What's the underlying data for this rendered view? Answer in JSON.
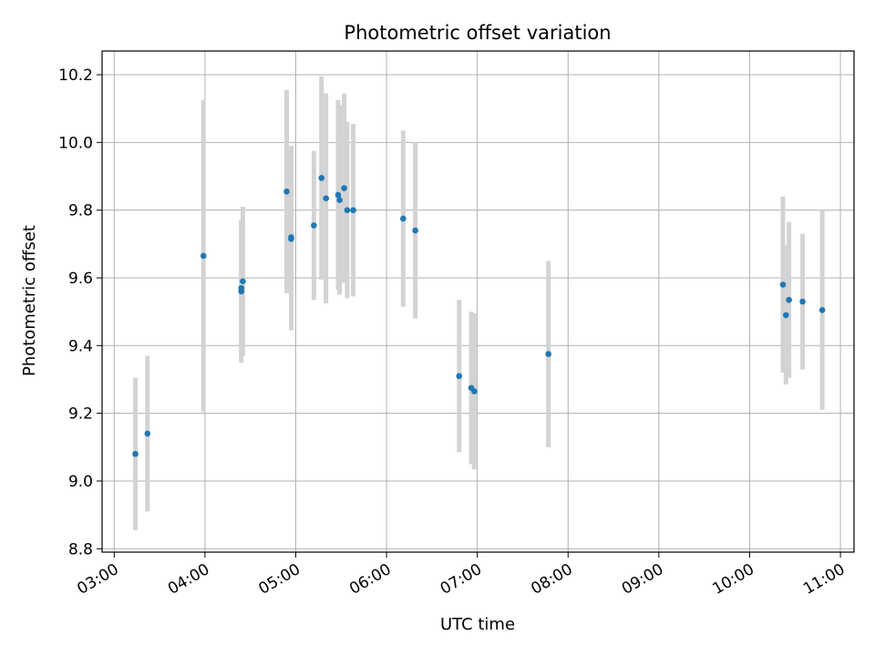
{
  "chart_data": {
    "type": "scatter",
    "title": "Photometric offset variation",
    "xlabel": "UTC time",
    "ylabel": "Photometric offset",
    "x_axis_type": "time",
    "xlim": [
      "02:52",
      "11:09"
    ],
    "ylim": [
      8.79,
      10.27
    ],
    "x_ticks": [
      "03:00",
      "04:00",
      "05:00",
      "06:00",
      "07:00",
      "08:00",
      "09:00",
      "10:00",
      "11:00"
    ],
    "y_ticks": [
      8.8,
      9.0,
      9.2,
      9.4,
      9.6,
      9.8,
      10.0,
      10.2
    ],
    "y_tick_labels": [
      "8.8",
      "9.0",
      "9.2",
      "9.4",
      "9.6",
      "9.8",
      "10.0",
      "10.2"
    ],
    "grid": true,
    "marker_color": "#1f77b4",
    "errorbar_color": "#d3d3d3",
    "points": [
      {
        "x": "03:14",
        "y": 9.08,
        "err": 0.225
      },
      {
        "x": "03:22",
        "y": 9.14,
        "err": 0.23
      },
      {
        "x": "03:59",
        "y": 9.665,
        "err": 0.46
      },
      {
        "x": "04:24",
        "y": 9.56,
        "err": 0.21
      },
      {
        "x": "04:24",
        "y": 9.57,
        "err": 0.2
      },
      {
        "x": "04:25",
        "y": 9.59,
        "err": 0.22
      },
      {
        "x": "04:54",
        "y": 9.855,
        "err": 0.3
      },
      {
        "x": "04:57",
        "y": 9.715,
        "err": 0.27
      },
      {
        "x": "04:57",
        "y": 9.72,
        "err": 0.27
      },
      {
        "x": "05:12",
        "y": 9.755,
        "err": 0.22
      },
      {
        "x": "05:17",
        "y": 9.895,
        "err": 0.3
      },
      {
        "x": "05:20",
        "y": 9.835,
        "err": 0.31
      },
      {
        "x": "05:28",
        "y": 9.845,
        "err": 0.28
      },
      {
        "x": "05:29",
        "y": 9.83,
        "err": 0.28
      },
      {
        "x": "05:32",
        "y": 9.865,
        "err": 0.28
      },
      {
        "x": "05:34",
        "y": 9.8,
        "err": 0.26
      },
      {
        "x": "05:38",
        "y": 9.8,
        "err": 0.255
      },
      {
        "x": "06:11",
        "y": 9.775,
        "err": 0.26
      },
      {
        "x": "06:19",
        "y": 9.74,
        "err": 0.26
      },
      {
        "x": "06:48",
        "y": 9.31,
        "err": 0.225
      },
      {
        "x": "06:56",
        "y": 9.275,
        "err": 0.225
      },
      {
        "x": "06:58",
        "y": 9.265,
        "err": 0.23
      },
      {
        "x": "07:47",
        "y": 9.375,
        "err": 0.275
      },
      {
        "x": "10:22",
        "y": 9.58,
        "err": 0.26
      },
      {
        "x": "10:24",
        "y": 9.49,
        "err": 0.205
      },
      {
        "x": "10:26",
        "y": 9.535,
        "err": 0.23
      },
      {
        "x": "10:35",
        "y": 9.53,
        "err": 0.2
      },
      {
        "x": "10:48",
        "y": 9.505,
        "err": 0.295
      }
    ]
  }
}
